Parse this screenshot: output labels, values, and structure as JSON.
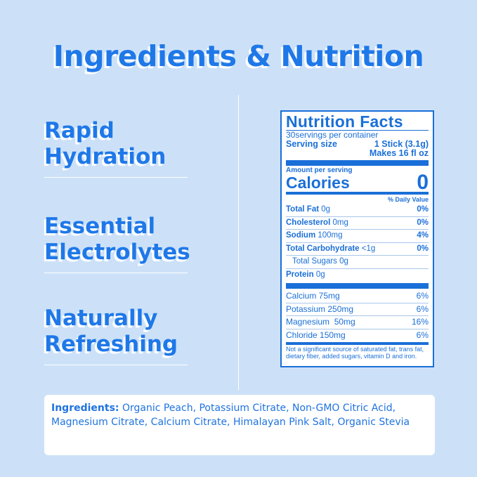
{
  "title": "Ingredients & Nutrition",
  "features": [
    {
      "line1": "Rapid",
      "line2": "Hydration"
    },
    {
      "line1": "Essential",
      "line2": "Electrolytes"
    },
    {
      "line1": "Naturally",
      "line2": "Refreshing"
    }
  ],
  "nutrition": {
    "heading": "Nutrition Facts",
    "servings": "30servings per container",
    "serving_size_label": "Serving size",
    "serving_size_value": "1 Stick (3.1g)",
    "makes": "Makes 16 fl oz",
    "amount_per_serving": "Amount per serving",
    "calories_label": "Calories",
    "calories_value": "0",
    "daily_value": "% Daily Value",
    "nutrients": [
      {
        "name": "Total Fat",
        "amount": "0g",
        "dv": "0%"
      },
      {
        "name": "Cholesterol",
        "amount": "0mg",
        "dv": "0%"
      },
      {
        "name": "Sodium",
        "amount": "100mg",
        "dv": "4%"
      },
      {
        "name": "Total Carbohydrate",
        "amount": "<1g",
        "dv": "0%"
      },
      {
        "name": "Total Sugars 0g",
        "amount": "",
        "dv": ""
      },
      {
        "name": "Protein",
        "amount": "0g",
        "dv": ""
      }
    ],
    "minerals": [
      {
        "label": "Calcium 75mg",
        "dv": "6%"
      },
      {
        "label": "Potassium 250mg",
        "dv": "6%"
      },
      {
        "label": "Magnesium  50mg",
        "dv": "16%"
      },
      {
        "label": "Chloride 150mg",
        "dv": "6%"
      }
    ],
    "footnote": "Not a significant source of saturated fat, trans fat, dietary fiber, added sugars, vitamin D and iron."
  },
  "ingredients": {
    "label": "Ingredients:",
    "text": "Organic Peach, Potassium Citrate, Non-GMO Citric Acid, Magnesium Citrate, Calcium Citrate, Himalayan Pink Salt, Organic Stevia"
  }
}
